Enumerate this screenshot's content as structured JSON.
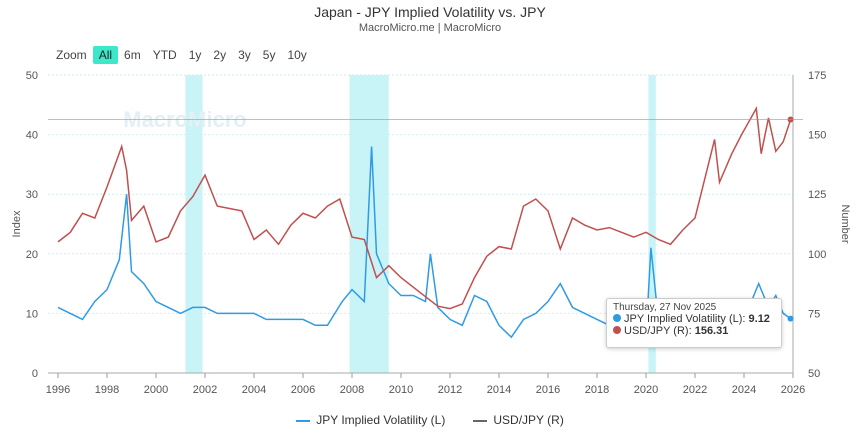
{
  "chart_data": {
    "type": "line",
    "title": "Japan - JPY Implied Volatility vs. JPY",
    "subtitle": "MacroMicro.me | MacroMicro",
    "watermark": "MacroMicro",
    "ylabel_left": "Index",
    "ylabel_right": "Number",
    "ylim_left": [
      0,
      50
    ],
    "ylim_right": [
      50,
      175
    ],
    "xlim": [
      1996,
      2026
    ],
    "x_ticks": [
      "1996",
      "1998",
      "2000",
      "2002",
      "2004",
      "2006",
      "2008",
      "2010",
      "2012",
      "2014",
      "2016",
      "2018",
      "2020",
      "2022",
      "2024",
      "2026"
    ],
    "y_ticks_left": [
      "0",
      "10",
      "20",
      "30",
      "40",
      "50"
    ],
    "y_ticks_right": [
      "50",
      "75",
      "100",
      "125",
      "150",
      "175"
    ],
    "grid": true,
    "legend": "bottom",
    "shaded_periods": [
      [
        2001.2,
        2001.9
      ],
      [
        2007.9,
        2009.5
      ],
      [
        2020.1,
        2020.4
      ]
    ],
    "series": [
      {
        "name": "JPY Implied Volatility (L)",
        "axis": "left",
        "color": "#2f9be5",
        "points": [
          [
            1996,
            11
          ],
          [
            1996.5,
            10
          ],
          [
            1997,
            9
          ],
          [
            1997.5,
            12
          ],
          [
            1998,
            14
          ],
          [
            1998.5,
            19
          ],
          [
            1998.8,
            30
          ],
          [
            1999,
            17
          ],
          [
            1999.5,
            15
          ],
          [
            2000,
            12
          ],
          [
            2000.5,
            11
          ],
          [
            2001,
            10
          ],
          [
            2001.5,
            11
          ],
          [
            2002,
            11
          ],
          [
            2002.5,
            10
          ],
          [
            2003,
            10
          ],
          [
            2003.5,
            10
          ],
          [
            2004,
            10
          ],
          [
            2004.5,
            9
          ],
          [
            2005,
            9
          ],
          [
            2005.5,
            9
          ],
          [
            2006,
            9
          ],
          [
            2006.5,
            8
          ],
          [
            2007,
            8
          ],
          [
            2007.6,
            12
          ],
          [
            2008,
            14
          ],
          [
            2008.5,
            12
          ],
          [
            2008.8,
            38
          ],
          [
            2009,
            20
          ],
          [
            2009.5,
            15
          ],
          [
            2010,
            13
          ],
          [
            2010.5,
            13
          ],
          [
            2011,
            12
          ],
          [
            2011.2,
            20
          ],
          [
            2011.5,
            11
          ],
          [
            2012,
            9
          ],
          [
            2012.5,
            8
          ],
          [
            2013,
            13
          ],
          [
            2013.5,
            12
          ],
          [
            2014,
            8
          ],
          [
            2014.5,
            6
          ],
          [
            2015,
            9
          ],
          [
            2015.5,
            10
          ],
          [
            2016,
            12
          ],
          [
            2016.5,
            15
          ],
          [
            2017,
            11
          ],
          [
            2017.5,
            10
          ],
          [
            2018,
            9
          ],
          [
            2018.5,
            8
          ],
          [
            2019,
            7
          ],
          [
            2019.5,
            7
          ],
          [
            2020,
            6
          ],
          [
            2020.2,
            21
          ],
          [
            2020.5,
            9
          ],
          [
            2021,
            6
          ],
          [
            2021.5,
            6
          ],
          [
            2022,
            9
          ],
          [
            2022.5,
            11
          ],
          [
            2023,
            12
          ],
          [
            2023.5,
            10
          ],
          [
            2024,
            9
          ],
          [
            2024.6,
            15
          ],
          [
            2025,
            11
          ],
          [
            2025.3,
            13
          ],
          [
            2025.6,
            10
          ],
          [
            2025.9,
            9.12
          ]
        ]
      },
      {
        "name": "USD/JPY (R)",
        "axis": "right",
        "color": "#c0504d",
        "points": [
          [
            1996,
            105
          ],
          [
            1996.5,
            109
          ],
          [
            1997,
            117
          ],
          [
            1997.5,
            115
          ],
          [
            1998,
            128
          ],
          [
            1998.6,
            145
          ],
          [
            1998.8,
            135
          ],
          [
            1999,
            114
          ],
          [
            1999.5,
            120
          ],
          [
            2000,
            105
          ],
          [
            2000.5,
            107
          ],
          [
            2001,
            118
          ],
          [
            2001.5,
            124
          ],
          [
            2002,
            133
          ],
          [
            2002.5,
            120
          ],
          [
            2003,
            119
          ],
          [
            2003.5,
            118
          ],
          [
            2004,
            106
          ],
          [
            2004.5,
            110
          ],
          [
            2005,
            104
          ],
          [
            2005.5,
            112
          ],
          [
            2006,
            117
          ],
          [
            2006.5,
            115
          ],
          [
            2007,
            120
          ],
          [
            2007.5,
            123
          ],
          [
            2008,
            107
          ],
          [
            2008.5,
            106
          ],
          [
            2009,
            90
          ],
          [
            2009.5,
            95
          ],
          [
            2010,
            90
          ],
          [
            2010.5,
            86
          ],
          [
            2011,
            82
          ],
          [
            2011.5,
            78
          ],
          [
            2012,
            77
          ],
          [
            2012.5,
            79
          ],
          [
            2013,
            90
          ],
          [
            2013.5,
            99
          ],
          [
            2014,
            103
          ],
          [
            2014.5,
            102
          ],
          [
            2015,
            120
          ],
          [
            2015.5,
            123
          ],
          [
            2016,
            118
          ],
          [
            2016.5,
            102
          ],
          [
            2017,
            115
          ],
          [
            2017.5,
            112
          ],
          [
            2018,
            110
          ],
          [
            2018.5,
            111
          ],
          [
            2019,
            109
          ],
          [
            2019.5,
            107
          ],
          [
            2020,
            109
          ],
          [
            2020.5,
            106
          ],
          [
            2021,
            104
          ],
          [
            2021.5,
            110
          ],
          [
            2022,
            115
          ],
          [
            2022.8,
            148
          ],
          [
            2023,
            130
          ],
          [
            2023.5,
            142
          ],
          [
            2023.9,
            150
          ],
          [
            2024.5,
            161
          ],
          [
            2024.7,
            142
          ],
          [
            2025,
            157
          ],
          [
            2025.3,
            143
          ],
          [
            2025.6,
            147
          ],
          [
            2025.9,
            156.31
          ]
        ]
      }
    ],
    "tooltip": {
      "date": "Thursday, 27 Nov 2025",
      "rows": [
        {
          "label": "JPY Implied Volatility (L): ",
          "value": "9.12"
        },
        {
          "label": "USD/JPY (R): ",
          "value": "156.31"
        }
      ]
    }
  },
  "range_selector": {
    "label": "Zoom",
    "buttons": [
      "All",
      "6m",
      "YTD",
      "1y",
      "2y",
      "3y",
      "5y",
      "10y"
    ],
    "selected": "All"
  }
}
